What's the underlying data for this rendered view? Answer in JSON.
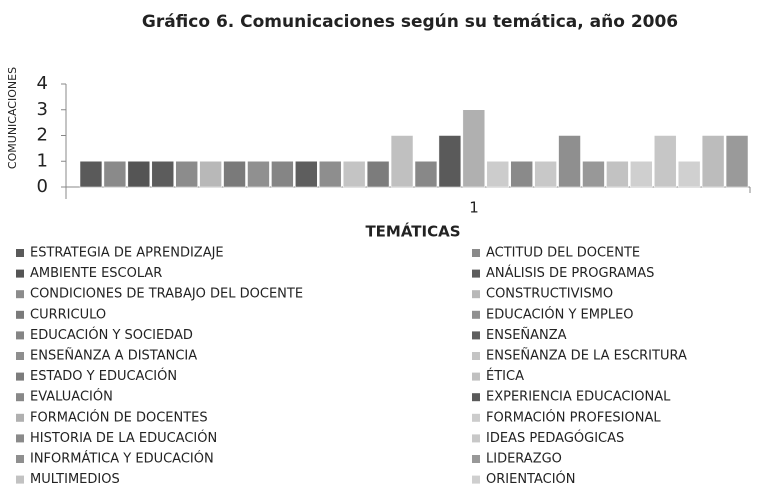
{
  "chart_data": {
    "type": "bar",
    "title": "Gráfico 6. Comunicaciones según su temática, año 2006",
    "x_label": "TEMÁTICAS",
    "y_label": "COMUNICACIONES",
    "categories": [
      "1"
    ],
    "ylim": [
      0,
      4
    ],
    "yticks": [
      0,
      1,
      2,
      3,
      4
    ],
    "grid": false,
    "series": [
      {
        "name": "ESTRATEGIA DE APRENDIZAJE",
        "color": "#5a5a5a",
        "values": [
          1
        ]
      },
      {
        "name": "ACTITUD DEL DOCENTE",
        "color": "#8a8a8a",
        "values": [
          1
        ]
      },
      {
        "name": "AMBIENTE ESCOLAR",
        "color": "#555555",
        "values": [
          1
        ]
      },
      {
        "name": "ANÁLISIS DE PROGRAMAS",
        "color": "#5c5c5c",
        "values": [
          1
        ]
      },
      {
        "name": "CONDICIONES DE TRABAJO DEL DOCENTE",
        "color": "#8c8c8c",
        "values": [
          1
        ]
      },
      {
        "name": "CONSTRUCTIVISMO",
        "color": "#b8b8b8",
        "values": [
          1
        ]
      },
      {
        "name": "CURRICULO",
        "color": "#7a7a7a",
        "values": [
          1
        ]
      },
      {
        "name": "EDUCACIÓN Y EMPLEO",
        "color": "#909090",
        "values": [
          1
        ]
      },
      {
        "name": "EDUCACIÓN Y SOCIEDAD",
        "color": "#858585",
        "values": [
          1
        ]
      },
      {
        "name": "ENSEÑANZA",
        "color": "#5e5e5e",
        "values": [
          1
        ]
      },
      {
        "name": "ENSEÑANZA A DISTANCIA",
        "color": "#8e8e8e",
        "values": [
          1
        ]
      },
      {
        "name": "ENSEÑANZA DE LA ESCRITURA",
        "color": "#c4c4c4",
        "values": [
          1
        ]
      },
      {
        "name": "ESTADO Y EDUCACIÓN",
        "color": "#7c7c7c",
        "values": [
          1
        ]
      },
      {
        "name": "ÉTICA",
        "color": "#c0c0c0",
        "values": [
          2
        ]
      },
      {
        "name": "EVALUACIÓN",
        "color": "#888888",
        "values": [
          1
        ]
      },
      {
        "name": "EXPERIENCIA EDUCACIONAL",
        "color": "#5a5a5a",
        "values": [
          2
        ]
      },
      {
        "name": "FORMACIÓN DE DOCENTES",
        "color": "#b0b0b0",
        "values": [
          3
        ]
      },
      {
        "name": "FORMACIÓN PROFESIONAL",
        "color": "#cccccc",
        "values": [
          1
        ]
      },
      {
        "name": "HISTORIA DE LA EDUCACIÓN",
        "color": "#8a8a8a",
        "values": [
          1
        ]
      },
      {
        "name": "IDEAS PEDAGÓGICAS",
        "color": "#c8c8c8",
        "values": [
          1
        ]
      },
      {
        "name": "INFORMÁTICA Y EDUCACIÓN",
        "color": "#8f8f8f",
        "values": [
          2
        ]
      },
      {
        "name": "LIDERAZGO",
        "color": "#989898",
        "values": [
          1
        ]
      },
      {
        "name": "MULTIMEDIOS",
        "color": "#c2c2c2",
        "values": [
          1
        ]
      },
      {
        "name": "ORIENTACIÓN",
        "color": "#cfcfcf",
        "values": [
          1
        ]
      },
      {
        "color": "#c6c6c6",
        "values": [
          2
        ]
      },
      {
        "color": "#d0d0d0",
        "values": [
          1
        ]
      },
      {
        "color": "#bcbcbc",
        "values": [
          2
        ]
      },
      {
        "color": "#9a9a9a",
        "values": [
          2
        ]
      }
    ]
  }
}
